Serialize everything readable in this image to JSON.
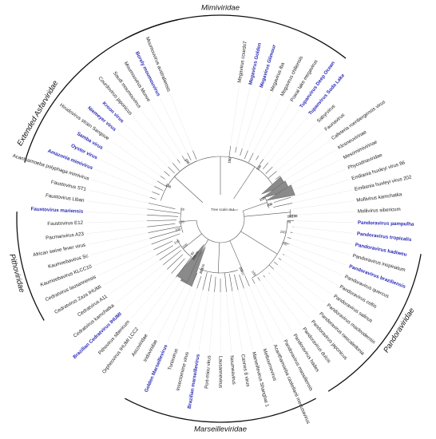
{
  "tree": {
    "scale_label": "Tree scale: 0.1",
    "families": [
      {
        "name": "Mimiviridae"
      },
      {
        "name": "Extended Asfarviridae"
      },
      {
        "name": "Pithoviridae"
      },
      {
        "name": "Marseilleviridae"
      },
      {
        "name": "Pandoraviridae"
      }
    ],
    "leaves": [
      {
        "label": "Megavirus courdo7",
        "highlight": false
      },
      {
        "label": "Megavirus Golden",
        "highlight": true
      },
      {
        "label": "Megavirus Glimour",
        "highlight": true
      },
      {
        "label": "Megavirus iba",
        "highlight": false
      },
      {
        "label": "Megavirus chiliensis",
        "highlight": false
      },
      {
        "label": "Powai lake megavirus",
        "highlight": false
      },
      {
        "label": "Tupanvirus Deep Ocean",
        "highlight": true
      },
      {
        "label": "Tupanvirus Soda Lake",
        "highlight": true
      },
      {
        "label": "Sabyrvirus",
        "highlight": false
      },
      {
        "label": "Faunavirus",
        "highlight": false
      },
      {
        "label": "Cafeteria roenbergensis virus",
        "highlight": false
      },
      {
        "label": "Klosneuvirinae",
        "highlight": false
      },
      {
        "label": "Mesomimivirinae",
        "highlight": false
      },
      {
        "label": "Phycodnaviridae",
        "highlight": false
      },
      {
        "label": "Emiliania huxleyi virus 86",
        "highlight": false
      },
      {
        "label": "Emiliania huxleyi virus 202",
        "highlight": false
      },
      {
        "label": "Mollivirus kamchatka",
        "highlight": false
      },
      {
        "label": "Mollivirus sibericum",
        "highlight": false
      },
      {
        "label": "Pandoravirus pampulha",
        "highlight": true
      },
      {
        "label": "Pandoravirus tropicalis",
        "highlight": true
      },
      {
        "label": "Pandoravirus kadiweu",
        "highlight": true
      },
      {
        "label": "Pandoravirus inopinatum",
        "highlight": false
      },
      {
        "label": "Pandoravirus braziliensis",
        "highlight": true
      },
      {
        "label": "Pandoravirus quercus",
        "highlight": false
      },
      {
        "label": "Pandoravirus celtis",
        "highlight": false
      },
      {
        "label": "Pandoravirus salinus",
        "highlight": false
      },
      {
        "label": "Pandoravirus macleodensis",
        "highlight": false
      },
      {
        "label": "Pandoravirus neocaledonia",
        "highlight": false
      },
      {
        "label": "Pandoravirus japonicus",
        "highlight": false
      },
      {
        "label": "Pandoravirus dulcis",
        "highlight": false
      },
      {
        "label": "Pandoravirus hades",
        "highlight": false
      },
      {
        "label": "Pandoravirus massiliensis",
        "highlight": false
      },
      {
        "label": "Acanthamoeba castellanii medusavirus",
        "highlight": false
      },
      {
        "label": "Melbournevirus",
        "highlight": false
      },
      {
        "label": "Marseillevirus Shanghai 1",
        "highlight": false
      },
      {
        "label": "Cannes 8 virus",
        "highlight": false
      },
      {
        "label": "Noumeavirus",
        "highlight": false
      },
      {
        "label": "Lausannevirus",
        "highlight": false
      },
      {
        "label": "Port-miou virus",
        "highlight": false
      },
      {
        "label": "Brazilian marseillevirus",
        "highlight": true
      },
      {
        "label": "Insectomime virus",
        "highlight": false
      },
      {
        "label": "Tunisvirus",
        "highlight": false
      },
      {
        "label": "Golden Marseillevirus",
        "highlight": true
      },
      {
        "label": "Iridoviridae",
        "highlight": false
      },
      {
        "label": "Ascoviridae",
        "highlight": false
      },
      {
        "label": "Orpheovirus IHUMI LCC2",
        "highlight": false
      },
      {
        "label": "Pithovirus sibericum",
        "highlight": false
      },
      {
        "label": "Brazilian Cedratvirus IHUMI",
        "highlight": true
      },
      {
        "label": "Cedratvirus kamchatka",
        "highlight": false
      },
      {
        "label": "Cedratvirus A11",
        "highlight": false
      },
      {
        "label": "Cedratvirus Zaza IHUMI",
        "highlight": false
      },
      {
        "label": "Cedratvirus lausannensis",
        "highlight": false
      },
      {
        "label": "Kaumoebavirus KLCC10",
        "highlight": false
      },
      {
        "label": "Kaumoebavirus Sc",
        "highlight": false
      },
      {
        "label": "African swine fever virus",
        "highlight": false
      },
      {
        "label": "Pacmanvirus A23",
        "highlight": false
      },
      {
        "label": "Faustovirus E12",
        "highlight": false
      },
      {
        "label": "Faustovirus mariensis",
        "highlight": true
      },
      {
        "label": "Faustovirus Liban",
        "highlight": false
      },
      {
        "label": "Faustovirus ST1",
        "highlight": false
      },
      {
        "label": "Acanthamoeba polyphaga mimivirus",
        "highlight": false
      },
      {
        "label": "Amazonia mimivirus",
        "highlight": true
      },
      {
        "label": "Oyster virus",
        "highlight": true
      },
      {
        "label": "Samba virus",
        "highlight": true
      },
      {
        "label": "Hirudovirus strain Sangsue",
        "highlight": false
      },
      {
        "label": "Niemeyer virus",
        "highlight": true
      },
      {
        "label": "Kroon virus",
        "highlight": true
      },
      {
        "label": "Courdovirus japonicus",
        "highlight": false
      },
      {
        "label": "Saudi moumouvirus",
        "highlight": false
      },
      {
        "label": "Moumouvirus Monve",
        "highlight": false
      },
      {
        "label": "Borely moumouvirus",
        "highlight": true
      },
      {
        "label": "Moumouvirus australiensis",
        "highlight": false
      }
    ],
    "support_values": [
      "100",
      "100",
      "100",
      "100",
      "100",
      "100",
      "100",
      "100",
      "100",
      "100",
      "100",
      "100",
      "100",
      "98",
      "89",
      "97",
      "100",
      "100",
      "100",
      "100",
      "100",
      "100",
      "100",
      "100",
      "100",
      "100",
      "100",
      "77",
      "89",
      "89",
      "100",
      "100",
      "100",
      "100",
      "100"
    ]
  }
}
